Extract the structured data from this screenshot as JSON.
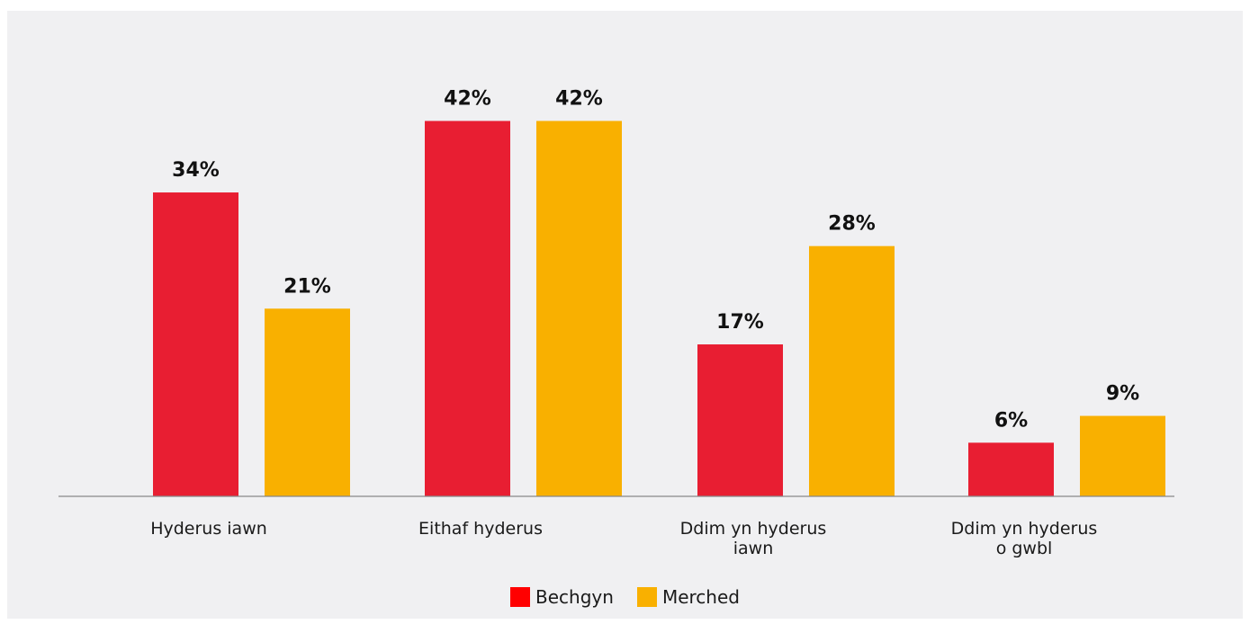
{
  "chart_data": {
    "type": "bar",
    "categories": [
      [
        "Hyderus iawn"
      ],
      [
        "Eithaf hyderus"
      ],
      [
        "Ddim yn hyderus",
        "iawn"
      ],
      [
        "Ddim yn hyderus",
        "o gwbl"
      ]
    ],
    "series": [
      {
        "name": "Bechgyn",
        "values": [
          34,
          42,
          17,
          6
        ],
        "labels": [
          "34%",
          "42%",
          "17%",
          "6%"
        ],
        "color": "#e81e32"
      },
      {
        "name": "Merched",
        "values": [
          21,
          42,
          28,
          9
        ],
        "labels": [
          "21%",
          "42%",
          "28%",
          "9%"
        ],
        "color": "#f9b000"
      }
    ],
    "title": "",
    "xlabel": "",
    "ylabel": "",
    "ylim": [
      0,
      50
    ],
    "grid": false,
    "legend": "bottom-center",
    "value_labels": true
  },
  "legend_swatch_colors": {
    "Bechgyn": "#ff0000",
    "Merched": "#f9b000"
  },
  "axis_color": "#888888"
}
